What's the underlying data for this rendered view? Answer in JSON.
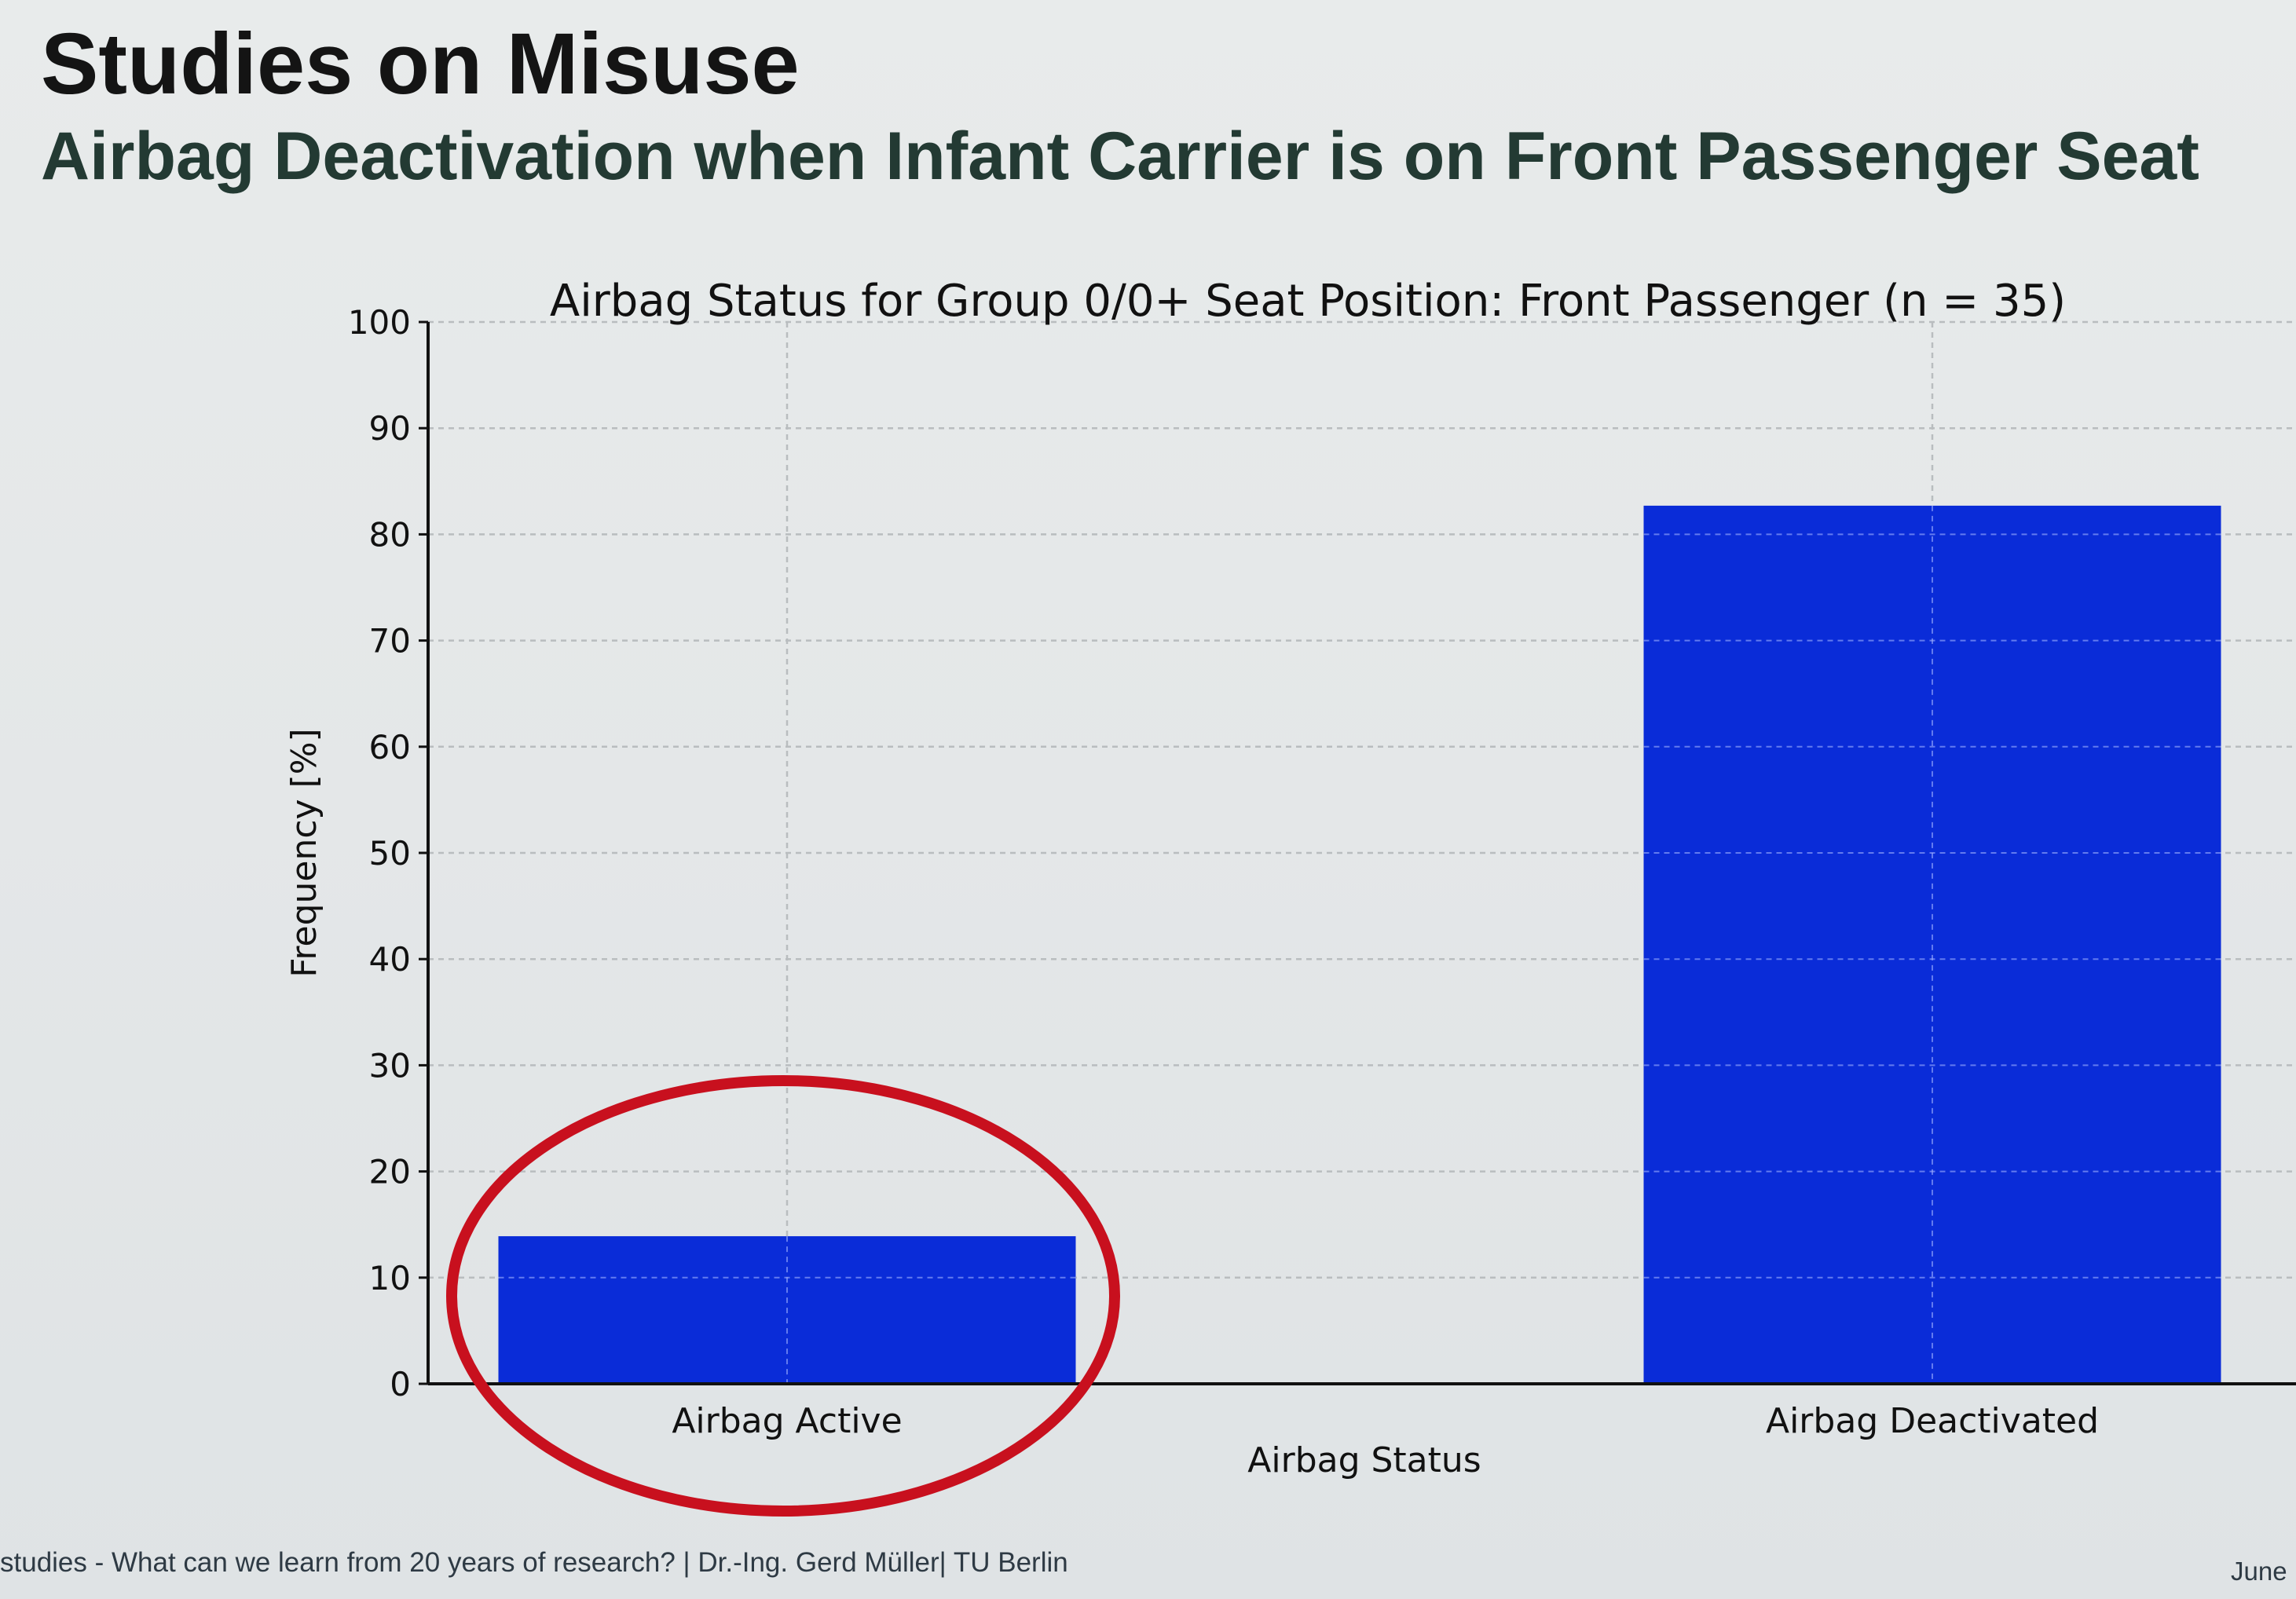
{
  "slide": {
    "title": "Studies on Misuse",
    "subtitle": "Airbag Deactivation when Infant Carrier is on Front Passenger Seat",
    "footer_left": "studies - What can we learn from 20 years of research? | Dr.-Ing. Gerd Müller| TU Berlin",
    "footer_right": "June"
  },
  "colors": {
    "bar": "#0a2cd8",
    "highlight_ellipse": "#c8101e",
    "text": "#111111"
  },
  "chart_data": {
    "type": "bar",
    "title": "Airbag Status for Group 0/0+ Seat Position: Front Passenger (n = 35)",
    "xlabel": "Airbag Status",
    "ylabel": "Frequency [%]",
    "categories": [
      "Airbag Active",
      "Airbag Deactivated"
    ],
    "values": [
      13.9,
      82.7
    ],
    "ylim": [
      0,
      100
    ],
    "yticks": [
      0,
      10,
      20,
      30,
      40,
      50,
      60,
      70,
      80,
      90,
      100
    ],
    "grid": true,
    "highlighted_category": "Airbag Active"
  }
}
